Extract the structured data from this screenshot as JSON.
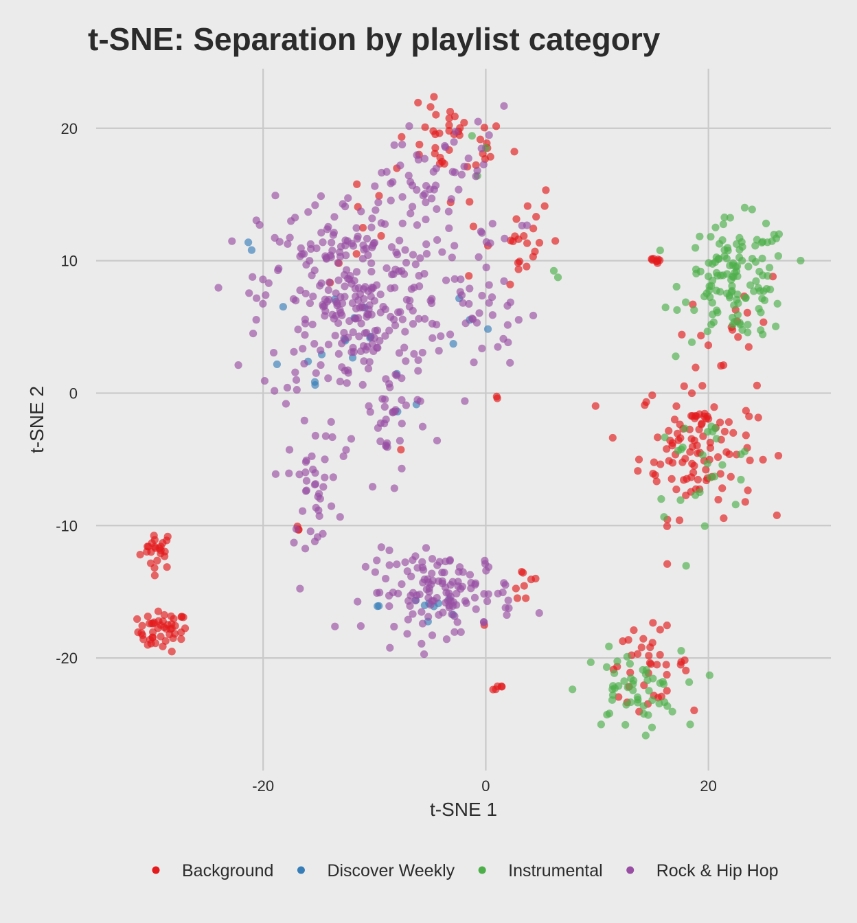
{
  "chart_data": {
    "type": "scatter",
    "title": "t-SNE: Separation by playlist category",
    "xlabel": "t-SNE 1",
    "ylabel": "t-SNE 2",
    "xlim": [
      -35,
      31
    ],
    "ylim": [
      -28.5,
      24.5
    ],
    "xticks": [
      -20,
      0,
      20
    ],
    "yticks": [
      -20,
      -10,
      0,
      10,
      20
    ],
    "grid": true,
    "legend_position": "bottom",
    "series": [
      {
        "name": "Background",
        "color": "#e41a1c",
        "clusters": [
          {
            "cx": -29.5,
            "cy": -11.8,
            "sx": 1.0,
            "sy": 1.0,
            "n": 24
          },
          {
            "cx": -29.0,
            "cy": -18.0,
            "sx": 1.5,
            "sy": 1.0,
            "n": 46
          },
          {
            "cx": -3.0,
            "cy": 19.0,
            "sx": 3.5,
            "sy": 1.8,
            "n": 40
          },
          {
            "cx": 2.0,
            "cy": 12.0,
            "sx": 3.0,
            "sy": 3.0,
            "n": 26
          },
          {
            "cx": 3.5,
            "cy": -14.5,
            "sx": 1.0,
            "sy": 1.2,
            "n": 8
          },
          {
            "cx": 1.0,
            "cy": -22.2,
            "sx": 0.5,
            "sy": 0.2,
            "n": 5
          },
          {
            "cx": 15.5,
            "cy": 10.0,
            "sx": 0.8,
            "sy": 0.2,
            "n": 8
          },
          {
            "cx": 22.5,
            "cy": 6.0,
            "sx": 3.0,
            "sy": 2.5,
            "n": 14
          },
          {
            "cx": 19.0,
            "cy": -4.0,
            "sx": 3.5,
            "sy": 3.5,
            "n": 112
          },
          {
            "cx": 14.5,
            "cy": -20.5,
            "sx": 2.5,
            "sy": 1.8,
            "n": 38
          },
          {
            "cx": -17.0,
            "cy": -10.5,
            "sx": 0.4,
            "sy": 0.3,
            "n": 3
          },
          {
            "cx": -7.5,
            "cy": -4.5,
            "sx": 0.3,
            "sy": 0.3,
            "n": 1
          },
          {
            "cx": 1.0,
            "cy": -0.5,
            "sx": 0.2,
            "sy": 0.2,
            "n": 2
          },
          {
            "cx": -11.0,
            "cy": 12.5,
            "sx": 2.0,
            "sy": 3.0,
            "n": 8
          },
          {
            "cx": 0.0,
            "cy": -17.5,
            "sx": 0.2,
            "sy": 0.2,
            "n": 1
          }
        ]
      },
      {
        "name": "Discover Weekly",
        "color": "#377eb8",
        "clusters": [
          {
            "cx": -14.0,
            "cy": 4.0,
            "sx": 4.0,
            "sy": 4.0,
            "n": 14
          },
          {
            "cx": -5.0,
            "cy": -16.0,
            "sx": 3.0,
            "sy": 1.5,
            "n": 10
          },
          {
            "cx": -1.5,
            "cy": 6.0,
            "sx": 2.0,
            "sy": 3.0,
            "n": 4
          },
          {
            "cx": -21.0,
            "cy": 11.0,
            "sx": 0.5,
            "sy": 0.5,
            "n": 2
          },
          {
            "cx": -7.5,
            "cy": -1.0,
            "sx": 1.5,
            "sy": 1.0,
            "n": 3
          }
        ]
      },
      {
        "name": "Instrumental",
        "color": "#4daf4a",
        "clusters": [
          {
            "cx": 22.5,
            "cy": 8.5,
            "sx": 3.2,
            "sy": 3.0,
            "n": 130
          },
          {
            "cx": 19.5,
            "cy": -5.5,
            "sx": 3.5,
            "sy": 2.5,
            "n": 26
          },
          {
            "cx": 13.0,
            "cy": -22.5,
            "sx": 3.0,
            "sy": 2.0,
            "n": 52
          },
          {
            "cx": -0.5,
            "cy": 18.0,
            "sx": 1.0,
            "sy": 2.0,
            "n": 3
          },
          {
            "cx": 6.0,
            "cy": 9.0,
            "sx": 0.5,
            "sy": 1.5,
            "n": 2
          }
        ]
      },
      {
        "name": "Rock & Hip Hop",
        "color": "#984ea3",
        "clusters": [
          {
            "cx": -12.0,
            "cy": 7.0,
            "sx": 5.5,
            "sy": 5.5,
            "n": 300
          },
          {
            "cx": -4.0,
            "cy": 15.5,
            "sx": 4.5,
            "sy": 4.0,
            "n": 60
          },
          {
            "cx": -15.5,
            "cy": -7.0,
            "sx": 1.5,
            "sy": 3.0,
            "n": 40
          },
          {
            "cx": -4.0,
            "cy": -15.0,
            "sx": 4.5,
            "sy": 2.0,
            "n": 130
          },
          {
            "cx": 0.5,
            "cy": 6.0,
            "sx": 2.5,
            "sy": 3.0,
            "n": 30
          },
          {
            "cx": -8.5,
            "cy": -3.0,
            "sx": 2.0,
            "sy": 2.5,
            "n": 25
          }
        ]
      }
    ]
  }
}
